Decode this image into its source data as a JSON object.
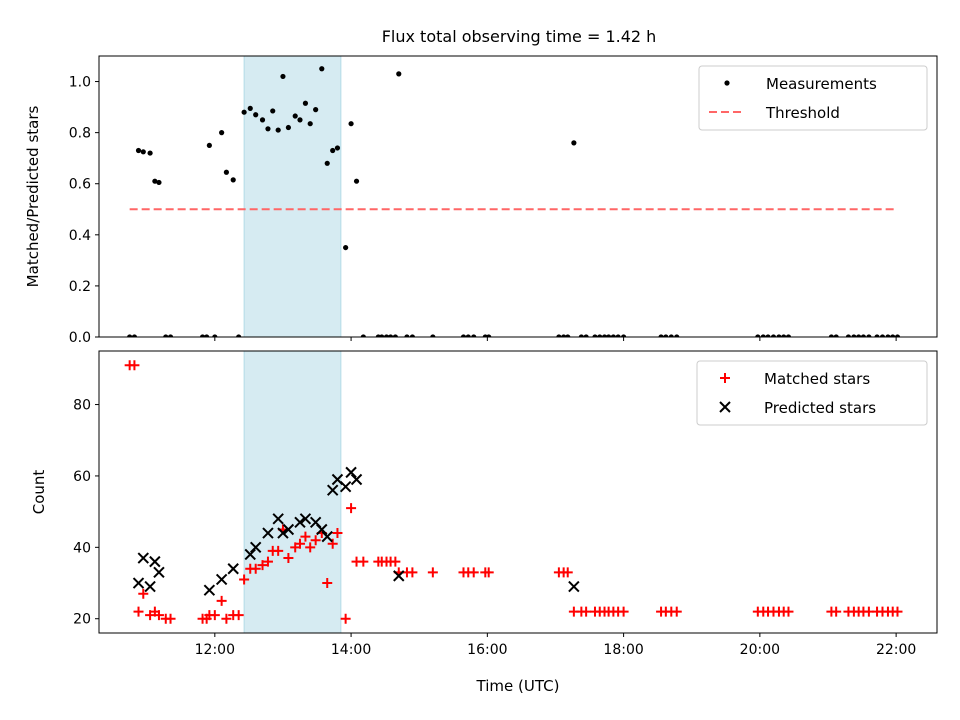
{
  "figure": {
    "title": "Flux total observing time = 1.42 h"
  },
  "chart_data": [
    {
      "type": "scatter",
      "panel": "top",
      "ylabel": "Matched/Predicted stars",
      "xlabel": "",
      "xlim": [
        10.3,
        22.6
      ],
      "ylim": [
        0,
        1.1
      ],
      "yticks": [
        "0.0",
        "0.2",
        "0.4",
        "0.6",
        "0.8",
        "1.0"
      ],
      "ytick_values": [
        0,
        0.2,
        0.4,
        0.6,
        0.8,
        1.0
      ],
      "xtick_values": [
        12,
        14,
        16,
        18,
        20,
        22
      ],
      "grid": false,
      "legend": {
        "placement": "top-right",
        "entries": [
          "Measurements",
          "Threshold"
        ]
      },
      "shaded_interval": {
        "x": [
          12.43,
          13.85
        ],
        "color": "#add8e6"
      },
      "colors": {
        "measurements": "#000000",
        "threshold": "#ff6666"
      },
      "threshold": {
        "name": "Threshold",
        "value": 0.5,
        "x": [
          10.75,
          22.0
        ]
      },
      "series": [
        {
          "name": "Measurements",
          "points": [
            [
              10.75,
              0
            ],
            [
              10.82,
              0
            ],
            [
              10.88,
              0.73
            ],
            [
              10.95,
              0.725
            ],
            [
              11.05,
              0.72
            ],
            [
              11.12,
              0.61
            ],
            [
              11.18,
              0.605
            ],
            [
              11.28,
              0
            ],
            [
              11.35,
              0
            ],
            [
              11.82,
              0
            ],
            [
              11.88,
              0
            ],
            [
              11.92,
              0.75
            ],
            [
              12.0,
              0
            ],
            [
              12.1,
              0.8
            ],
            [
              12.17,
              0.645
            ],
            [
              12.27,
              0.615
            ],
            [
              12.35,
              0
            ],
            [
              12.43,
              0.88
            ],
            [
              12.52,
              0.895
            ],
            [
              12.6,
              0.87
            ],
            [
              12.7,
              0.85
            ],
            [
              12.78,
              0.815
            ],
            [
              12.85,
              0.885
            ],
            [
              12.93,
              0.81
            ],
            [
              13.0,
              1.02
            ],
            [
              13.08,
              0.82
            ],
            [
              13.18,
              0.865
            ],
            [
              13.25,
              0.85
            ],
            [
              13.33,
              0.915
            ],
            [
              13.4,
              0.835
            ],
            [
              13.48,
              0.89
            ],
            [
              13.57,
              1.05
            ],
            [
              13.65,
              0.68
            ],
            [
              13.73,
              0.73
            ],
            [
              13.8,
              0.74
            ],
            [
              13.92,
              0.35
            ],
            [
              14.0,
              0.835
            ],
            [
              14.08,
              0.61
            ],
            [
              14.18,
              0
            ],
            [
              14.4,
              0
            ],
            [
              14.45,
              0
            ],
            [
              14.52,
              0
            ],
            [
              14.58,
              0
            ],
            [
              14.65,
              0
            ],
            [
              14.7,
              1.03
            ],
            [
              14.82,
              0
            ],
            [
              14.9,
              0
            ],
            [
              15.2,
              0
            ],
            [
              15.65,
              0
            ],
            [
              15.72,
              0
            ],
            [
              15.8,
              0
            ],
            [
              15.97,
              0
            ],
            [
              16.02,
              0
            ],
            [
              17.05,
              0
            ],
            [
              17.12,
              0
            ],
            [
              17.18,
              0
            ],
            [
              17.27,
              0.76
            ],
            [
              17.38,
              0
            ],
            [
              17.45,
              0
            ],
            [
              17.58,
              0
            ],
            [
              17.65,
              0
            ],
            [
              17.72,
              0
            ],
            [
              17.78,
              0
            ],
            [
              17.85,
              0
            ],
            [
              17.92,
              0
            ],
            [
              18.0,
              0
            ],
            [
              18.55,
              0
            ],
            [
              18.62,
              0
            ],
            [
              18.7,
              0
            ],
            [
              18.78,
              0
            ],
            [
              19.97,
              0
            ],
            [
              20.05,
              0
            ],
            [
              20.12,
              0
            ],
            [
              20.2,
              0
            ],
            [
              20.28,
              0
            ],
            [
              20.35,
              0
            ],
            [
              20.42,
              0
            ],
            [
              21.05,
              0
            ],
            [
              21.12,
              0
            ],
            [
              21.3,
              0
            ],
            [
              21.38,
              0
            ],
            [
              21.45,
              0
            ],
            [
              21.52,
              0
            ],
            [
              21.6,
              0
            ],
            [
              21.72,
              0
            ],
            [
              21.8,
              0
            ],
            [
              21.88,
              0
            ],
            [
              21.95,
              0
            ],
            [
              22.02,
              0
            ]
          ]
        }
      ]
    },
    {
      "type": "scatter",
      "panel": "bottom",
      "ylabel": "Count",
      "xlabel": "Time (UTC)",
      "xlim": [
        10.3,
        22.6
      ],
      "ylim": [
        16,
        95
      ],
      "yticks": [
        "20",
        "40",
        "60",
        "80"
      ],
      "ytick_values": [
        20,
        40,
        60,
        80
      ],
      "xticks": [
        "12:00",
        "14:00",
        "16:00",
        "18:00",
        "20:00",
        "22:00"
      ],
      "xtick_values": [
        12,
        14,
        16,
        18,
        20,
        22
      ],
      "grid": false,
      "legend": {
        "placement": "top-right",
        "entries": [
          "Matched stars",
          "Predicted stars"
        ]
      },
      "shaded_interval": {
        "x": [
          12.43,
          13.85
        ],
        "color": "#add8e6"
      },
      "colors": {
        "matched": "#ff0000",
        "predicted": "#000000"
      },
      "series": [
        {
          "name": "Matched stars",
          "marker": "plus",
          "points": [
            [
              10.75,
              91
            ],
            [
              10.82,
              91
            ],
            [
              10.88,
              22
            ],
            [
              10.95,
              27
            ],
            [
              11.05,
              21
            ],
            [
              11.12,
              22
            ],
            [
              11.18,
              21
            ],
            [
              11.28,
              20
            ],
            [
              11.35,
              20
            ],
            [
              11.82,
              20
            ],
            [
              11.88,
              20
            ],
            [
              11.92,
              21
            ],
            [
              12.0,
              21
            ],
            [
              12.1,
              25
            ],
            [
              12.17,
              20
            ],
            [
              12.27,
              21
            ],
            [
              12.35,
              21
            ],
            [
              12.43,
              31
            ],
            [
              12.52,
              34
            ],
            [
              12.6,
              34
            ],
            [
              12.7,
              35
            ],
            [
              12.78,
              36
            ],
            [
              12.85,
              39
            ],
            [
              12.93,
              39
            ],
            [
              13.0,
              45
            ],
            [
              13.08,
              37
            ],
            [
              13.18,
              40
            ],
            [
              13.25,
              41
            ],
            [
              13.33,
              43
            ],
            [
              13.4,
              40
            ],
            [
              13.48,
              42
            ],
            [
              13.57,
              44
            ],
            [
              13.65,
              30
            ],
            [
              13.73,
              41
            ],
            [
              13.8,
              44
            ],
            [
              13.92,
              20
            ],
            [
              14.0,
              51
            ],
            [
              14.08,
              36
            ],
            [
              14.18,
              36
            ],
            [
              14.4,
              36
            ],
            [
              14.45,
              36
            ],
            [
              14.52,
              36
            ],
            [
              14.58,
              36
            ],
            [
              14.65,
              36
            ],
            [
              14.7,
              33
            ],
            [
              14.82,
              33
            ],
            [
              14.9,
              33
            ],
            [
              15.2,
              33
            ],
            [
              15.65,
              33
            ],
            [
              15.72,
              33
            ],
            [
              15.8,
              33
            ],
            [
              15.97,
              33
            ],
            [
              16.02,
              33
            ],
            [
              17.05,
              33
            ],
            [
              17.12,
              33
            ],
            [
              17.18,
              33
            ],
            [
              17.27,
              22
            ],
            [
              17.38,
              22
            ],
            [
              17.45,
              22
            ],
            [
              17.58,
              22
            ],
            [
              17.65,
              22
            ],
            [
              17.72,
              22
            ],
            [
              17.78,
              22
            ],
            [
              17.85,
              22
            ],
            [
              17.92,
              22
            ],
            [
              18.0,
              22
            ],
            [
              18.55,
              22
            ],
            [
              18.62,
              22
            ],
            [
              18.7,
              22
            ],
            [
              18.78,
              22
            ],
            [
              19.97,
              22
            ],
            [
              20.05,
              22
            ],
            [
              20.12,
              22
            ],
            [
              20.2,
              22
            ],
            [
              20.28,
              22
            ],
            [
              20.35,
              22
            ],
            [
              20.42,
              22
            ],
            [
              21.05,
              22
            ],
            [
              21.12,
              22
            ],
            [
              21.3,
              22
            ],
            [
              21.38,
              22
            ],
            [
              21.45,
              22
            ],
            [
              21.52,
              22
            ],
            [
              21.6,
              22
            ],
            [
              21.72,
              22
            ],
            [
              21.8,
              22
            ],
            [
              21.88,
              22
            ],
            [
              21.95,
              22
            ],
            [
              22.02,
              22
            ]
          ]
        },
        {
          "name": "Predicted stars",
          "marker": "x",
          "points": [
            [
              10.88,
              30
            ],
            [
              10.95,
              37
            ],
            [
              11.05,
              29
            ],
            [
              11.12,
              36
            ],
            [
              11.18,
              33
            ],
            [
              11.92,
              28
            ],
            [
              12.1,
              31
            ],
            [
              12.27,
              34
            ],
            [
              12.52,
              38
            ],
            [
              12.6,
              40
            ],
            [
              12.78,
              44
            ],
            [
              12.93,
              48
            ],
            [
              13.0,
              44
            ],
            [
              13.08,
              45
            ],
            [
              13.25,
              47
            ],
            [
              13.33,
              48
            ],
            [
              13.48,
              47
            ],
            [
              13.57,
              45
            ],
            [
              13.65,
              43
            ],
            [
              13.73,
              56
            ],
            [
              13.8,
              59
            ],
            [
              13.92,
              57
            ],
            [
              14.0,
              61
            ],
            [
              14.08,
              59
            ],
            [
              14.7,
              32
            ],
            [
              17.27,
              29
            ]
          ]
        }
      ]
    }
  ]
}
